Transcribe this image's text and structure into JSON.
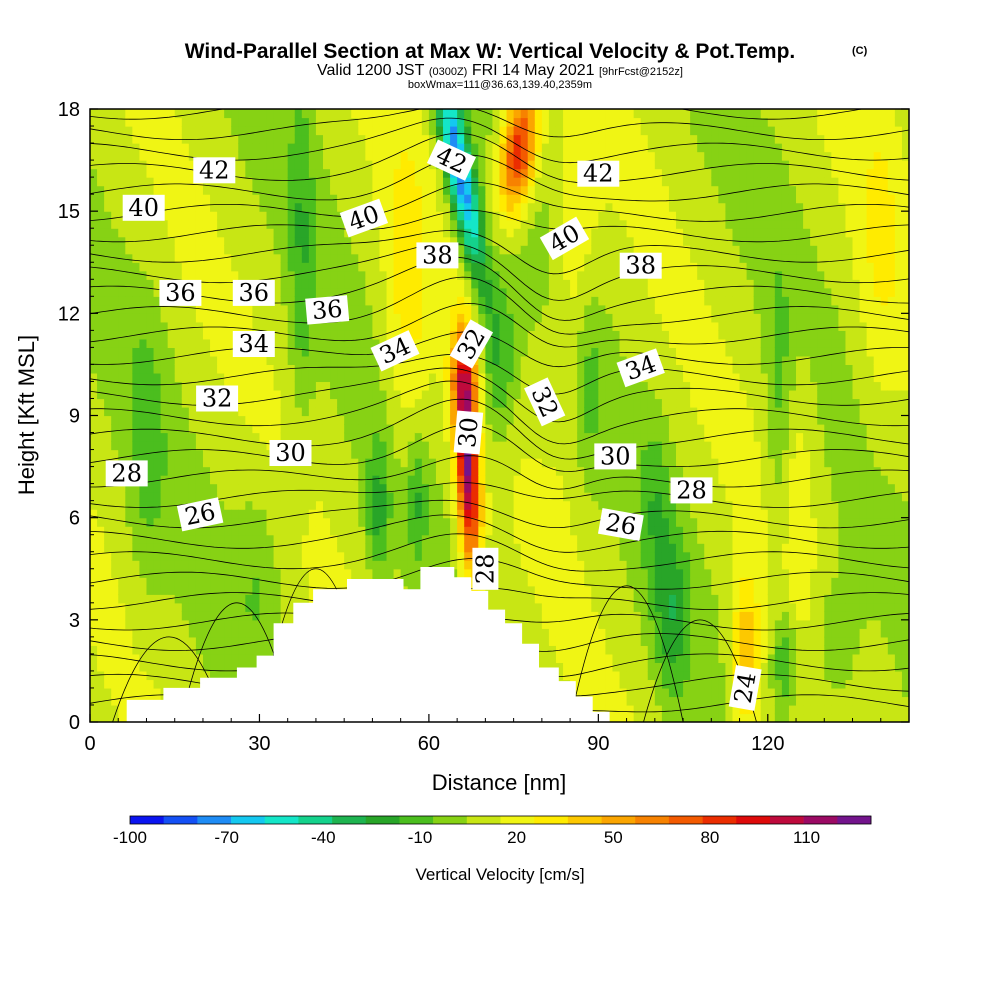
{
  "chart_data": {
    "type": "heatmap",
    "title": "Wind-Parallel Section at Max W: Vertical Velocity & Pot.Temp.",
    "title_mark": "(C)",
    "subtitle": {
      "prefix": "Valid 1200 JST",
      "utc": "(0300Z)",
      "date": "FRI 14 May 2021",
      "fcst": "[9hrFcst@2152z]"
    },
    "subtitle2": "boxWmax=111@36.63,139.40,2359m",
    "xlabel": "Distance [nm]",
    "ylabel": "Height [Kft MSL]",
    "xlim": [
      0,
      145
    ],
    "ylim": [
      0,
      18
    ],
    "x_ticks": [
      "0",
      "30",
      "60",
      "90",
      "120"
    ],
    "x_tick_values": [
      0,
      30,
      60,
      90,
      120
    ],
    "y_ticks": [
      "0",
      "3",
      "6",
      "9",
      "12",
      "15",
      "18"
    ],
    "y_tick_values": [
      0,
      3,
      6,
      9,
      12,
      15,
      18
    ],
    "colorbar": {
      "label": "Vertical Velocity [cm/s]",
      "tick_labels": [
        "-100",
        "-70",
        "-40",
        "-10",
        "20",
        "50",
        "80",
        "110"
      ],
      "tick_values": [
        -100,
        -70,
        -40,
        -10,
        20,
        50,
        80,
        110
      ],
      "min": -100,
      "max": 120,
      "step": 10,
      "colors": [
        "#0a14f0",
        "#1450f5",
        "#1e8cf5",
        "#14c8f0",
        "#14e6c8",
        "#14d28c",
        "#1eb450",
        "#28a528",
        "#4bbe1e",
        "#87d214",
        "#c8e614",
        "#f0f514",
        "#ffeb00",
        "#fdc800",
        "#fba500",
        "#f78200",
        "#f35a00",
        "#eb2d00",
        "#de0a0a",
        "#be0a3c",
        "#9b0a64",
        "#73148c"
      ]
    },
    "theta_contour_labels": [
      {
        "text": "42",
        "x": 22,
        "y": 16.2,
        "angle": 0
      },
      {
        "text": "40",
        "x": 9.5,
        "y": 15.1,
        "angle": 0
      },
      {
        "text": "36",
        "x": 16,
        "y": 12.6,
        "angle": 0
      },
      {
        "text": "36",
        "x": 29,
        "y": 12.6,
        "angle": 0
      },
      {
        "text": "36",
        "x": 42,
        "y": 12.1,
        "angle": -5
      },
      {
        "text": "34",
        "x": 29,
        "y": 11.1,
        "angle": 0
      },
      {
        "text": "32",
        "x": 22.5,
        "y": 9.5,
        "angle": 0
      },
      {
        "text": "30",
        "x": 35.5,
        "y": 7.9,
        "angle": 0
      },
      {
        "text": "28",
        "x": 6.5,
        "y": 7.3,
        "angle": 0
      },
      {
        "text": "26",
        "x": 19.5,
        "y": 6.1,
        "angle": -12
      },
      {
        "text": "40",
        "x": 48.5,
        "y": 14.8,
        "angle": -20
      },
      {
        "text": "38",
        "x": 61.5,
        "y": 13.7,
        "angle": 0
      },
      {
        "text": "42",
        "x": 64,
        "y": 16.5,
        "angle": 25
      },
      {
        "text": "34",
        "x": 54,
        "y": 10.9,
        "angle": -25
      },
      {
        "text": "32",
        "x": 67.5,
        "y": 11.1,
        "angle": -60
      },
      {
        "text": "30",
        "x": 67,
        "y": 8.5,
        "angle": -85
      },
      {
        "text": "28",
        "x": 70,
        "y": 4.5,
        "angle": -90
      },
      {
        "text": "42",
        "x": 90,
        "y": 16.1,
        "angle": 0
      },
      {
        "text": "40",
        "x": 84,
        "y": 14.2,
        "angle": -30
      },
      {
        "text": "38",
        "x": 97.5,
        "y": 13.4,
        "angle": 0
      },
      {
        "text": "34",
        "x": 97.5,
        "y": 10.4,
        "angle": -20
      },
      {
        "text": "32",
        "x": 80.5,
        "y": 9.4,
        "angle": 65
      },
      {
        "text": "30",
        "x": 93,
        "y": 7.8,
        "angle": 0
      },
      {
        "text": "28",
        "x": 106.5,
        "y": 6.8,
        "angle": 0
      },
      {
        "text": "26",
        "x": 94,
        "y": 5.8,
        "angle": 10
      },
      {
        "text": "24",
        "x": 116,
        "y": 1.0,
        "angle": -80
      }
    ]
  }
}
